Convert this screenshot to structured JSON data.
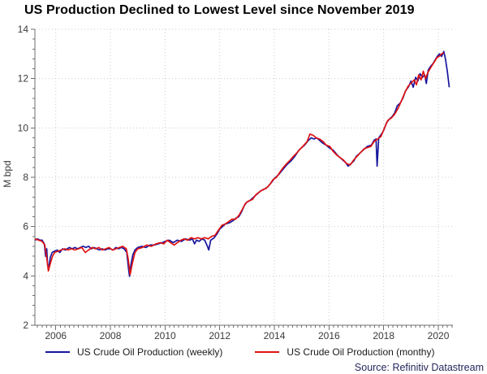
{
  "title": "US Production Declined to Lowest Level since November 2019",
  "source": "Source: Refinitiv Datastream",
  "colors": {
    "weekly": "#16169e",
    "monthly": "#e01313",
    "grid": "#cbcbcb",
    "axis": "#6f6f6f",
    "tick_label": "#3a3a3a",
    "title": "#000000",
    "source": "#26265c"
  },
  "chart_data": {
    "type": "line",
    "title": "US Production Declined to Lowest Level since November 2019",
    "xlabel": "",
    "ylabel": "M bpd",
    "ylim": [
      2,
      14
    ],
    "xlim": [
      2005.24,
      2020.53
    ],
    "y_ticks": [
      2,
      4,
      6,
      8,
      10,
      12,
      14
    ],
    "x_ticks": [
      2006,
      2008,
      2010,
      2012,
      2014,
      2016,
      2018,
      2020
    ],
    "grid": "dotted horizontal and vertical at major ticks",
    "legend_position": "bottom",
    "series": [
      {
        "name": "US Crude Oil Production (weekly)",
        "color_key": "weekly",
        "points": [
          [
            2005.24,
            5.45
          ],
          [
            2005.33,
            5.5
          ],
          [
            2005.42,
            5.45
          ],
          [
            2005.5,
            5.45
          ],
          [
            2005.58,
            5.3
          ],
          [
            2005.63,
            4.8
          ],
          [
            2005.67,
            5.1
          ],
          [
            2005.7,
            4.45
          ],
          [
            2005.75,
            4.4
          ],
          [
            2005.8,
            4.75
          ],
          [
            2005.87,
            4.95
          ],
          [
            2005.95,
            5.0
          ],
          [
            2006.05,
            5.05
          ],
          [
            2006.15,
            4.95
          ],
          [
            2006.25,
            5.1
          ],
          [
            2006.35,
            5.05
          ],
          [
            2006.5,
            5.15
          ],
          [
            2006.6,
            5.1
          ],
          [
            2006.7,
            5.15
          ],
          [
            2006.8,
            5.1
          ],
          [
            2006.9,
            5.15
          ],
          [
            2007.0,
            5.2
          ],
          [
            2007.1,
            5.15
          ],
          [
            2007.2,
            5.2
          ],
          [
            2007.3,
            5.1
          ],
          [
            2007.4,
            5.15
          ],
          [
            2007.5,
            5.1
          ],
          [
            2007.6,
            5.05
          ],
          [
            2007.7,
            5.1
          ],
          [
            2007.8,
            5.05
          ],
          [
            2007.9,
            5.1
          ],
          [
            2008.0,
            5.1
          ],
          [
            2008.1,
            5.05
          ],
          [
            2008.2,
            5.15
          ],
          [
            2008.3,
            5.1
          ],
          [
            2008.4,
            5.15
          ],
          [
            2008.5,
            5.1
          ],
          [
            2008.6,
            4.95
          ],
          [
            2008.66,
            4.3
          ],
          [
            2008.7,
            3.98
          ],
          [
            2008.75,
            4.45
          ],
          [
            2008.82,
            4.85
          ],
          [
            2008.9,
            5.05
          ],
          [
            2009.0,
            5.15
          ],
          [
            2009.15,
            5.2
          ],
          [
            2009.3,
            5.15
          ],
          [
            2009.45,
            5.25
          ],
          [
            2009.6,
            5.25
          ],
          [
            2009.75,
            5.3
          ],
          [
            2009.9,
            5.35
          ],
          [
            2010.0,
            5.4
          ],
          [
            2010.15,
            5.45
          ],
          [
            2010.3,
            5.35
          ],
          [
            2010.45,
            5.45
          ],
          [
            2010.6,
            5.4
          ],
          [
            2010.75,
            5.5
          ],
          [
            2010.9,
            5.45
          ],
          [
            2011.0,
            5.5
          ],
          [
            2011.08,
            5.3
          ],
          [
            2011.15,
            5.45
          ],
          [
            2011.25,
            5.4
          ],
          [
            2011.35,
            5.5
          ],
          [
            2011.45,
            5.45
          ],
          [
            2011.55,
            5.2
          ],
          [
            2011.6,
            5.05
          ],
          [
            2011.67,
            5.45
          ],
          [
            2011.8,
            5.55
          ],
          [
            2011.9,
            5.7
          ],
          [
            2012.0,
            5.9
          ],
          [
            2012.1,
            6.0
          ],
          [
            2012.2,
            6.1
          ],
          [
            2012.35,
            6.15
          ],
          [
            2012.5,
            6.25
          ],
          [
            2012.6,
            6.35
          ],
          [
            2012.7,
            6.4
          ],
          [
            2012.8,
            6.6
          ],
          [
            2012.9,
            6.85
          ],
          [
            2013.0,
            7.0
          ],
          [
            2013.1,
            7.05
          ],
          [
            2013.25,
            7.2
          ],
          [
            2013.4,
            7.35
          ],
          [
            2013.5,
            7.45
          ],
          [
            2013.6,
            7.5
          ],
          [
            2013.75,
            7.6
          ],
          [
            2013.9,
            7.8
          ],
          [
            2014.0,
            7.95
          ],
          [
            2014.15,
            8.1
          ],
          [
            2014.3,
            8.3
          ],
          [
            2014.45,
            8.5
          ],
          [
            2014.6,
            8.65
          ],
          [
            2014.75,
            8.85
          ],
          [
            2014.9,
            9.1
          ],
          [
            2015.0,
            9.2
          ],
          [
            2015.1,
            9.3
          ],
          [
            2015.25,
            9.5
          ],
          [
            2015.35,
            9.6
          ],
          [
            2015.45,
            9.55
          ],
          [
            2015.55,
            9.6
          ],
          [
            2015.65,
            9.5
          ],
          [
            2015.75,
            9.4
          ],
          [
            2015.9,
            9.3
          ],
          [
            2016.0,
            9.2
          ],
          [
            2016.15,
            9.1
          ],
          [
            2016.3,
            8.9
          ],
          [
            2016.45,
            8.75
          ],
          [
            2016.6,
            8.6
          ],
          [
            2016.7,
            8.45
          ],
          [
            2016.8,
            8.55
          ],
          [
            2016.9,
            8.65
          ],
          [
            2017.0,
            8.85
          ],
          [
            2017.1,
            8.95
          ],
          [
            2017.25,
            9.1
          ],
          [
            2017.4,
            9.25
          ],
          [
            2017.55,
            9.3
          ],
          [
            2017.65,
            9.5
          ],
          [
            2017.72,
            9.55
          ],
          [
            2017.76,
            8.45
          ],
          [
            2017.82,
            9.6
          ],
          [
            2017.92,
            9.75
          ],
          [
            2018.0,
            9.9
          ],
          [
            2018.1,
            10.2
          ],
          [
            2018.2,
            10.35
          ],
          [
            2018.3,
            10.45
          ],
          [
            2018.4,
            10.6
          ],
          [
            2018.5,
            10.9
          ],
          [
            2018.6,
            11.0
          ],
          [
            2018.7,
            11.2
          ],
          [
            2018.8,
            11.5
          ],
          [
            2018.9,
            11.65
          ],
          [
            2019.0,
            11.9
          ],
          [
            2019.08,
            11.65
          ],
          [
            2019.17,
            12.05
          ],
          [
            2019.25,
            11.9
          ],
          [
            2019.33,
            12.2
          ],
          [
            2019.42,
            12.05
          ],
          [
            2019.5,
            12.15
          ],
          [
            2019.56,
            11.8
          ],
          [
            2019.63,
            12.35
          ],
          [
            2019.72,
            12.5
          ],
          [
            2019.8,
            12.6
          ],
          [
            2019.88,
            12.75
          ],
          [
            2019.96,
            12.9
          ],
          [
            2020.04,
            13.0
          ],
          [
            2020.12,
            12.9
          ],
          [
            2020.2,
            13.1
          ],
          [
            2020.26,
            12.8
          ],
          [
            2020.33,
            12.3
          ],
          [
            2020.4,
            11.65
          ]
        ]
      },
      {
        "name": "US Crude Oil Production (monthy)",
        "color_key": "monthly",
        "points": [
          [
            2005.24,
            5.5
          ],
          [
            2005.38,
            5.45
          ],
          [
            2005.5,
            5.4
          ],
          [
            2005.6,
            5.25
          ],
          [
            2005.68,
            4.65
          ],
          [
            2005.73,
            4.2
          ],
          [
            2005.8,
            4.5
          ],
          [
            2005.88,
            4.8
          ],
          [
            2005.96,
            4.95
          ],
          [
            2006.08,
            5.0
          ],
          [
            2006.2,
            5.05
          ],
          [
            2006.33,
            5.1
          ],
          [
            2006.45,
            5.05
          ],
          [
            2006.58,
            5.1
          ],
          [
            2006.7,
            5.05
          ],
          [
            2006.83,
            5.1
          ],
          [
            2006.95,
            5.15
          ],
          [
            2007.08,
            4.95
          ],
          [
            2007.2,
            5.05
          ],
          [
            2007.33,
            5.15
          ],
          [
            2007.45,
            5.1
          ],
          [
            2007.58,
            5.15
          ],
          [
            2007.7,
            5.05
          ],
          [
            2007.83,
            5.1
          ],
          [
            2007.95,
            5.15
          ],
          [
            2008.08,
            5.05
          ],
          [
            2008.2,
            5.1
          ],
          [
            2008.33,
            5.15
          ],
          [
            2008.45,
            5.2
          ],
          [
            2008.58,
            5.1
          ],
          [
            2008.65,
            4.7
          ],
          [
            2008.72,
            4.05
          ],
          [
            2008.8,
            4.5
          ],
          [
            2008.9,
            4.95
          ],
          [
            2009.0,
            5.1
          ],
          [
            2009.17,
            5.15
          ],
          [
            2009.33,
            5.25
          ],
          [
            2009.5,
            5.2
          ],
          [
            2009.67,
            5.3
          ],
          [
            2009.83,
            5.35
          ],
          [
            2009.95,
            5.3
          ],
          [
            2010.08,
            5.45
          ],
          [
            2010.2,
            5.35
          ],
          [
            2010.33,
            5.25
          ],
          [
            2010.45,
            5.35
          ],
          [
            2010.58,
            5.45
          ],
          [
            2010.7,
            5.5
          ],
          [
            2010.83,
            5.45
          ],
          [
            2010.95,
            5.55
          ],
          [
            2011.08,
            5.5
          ],
          [
            2011.2,
            5.55
          ],
          [
            2011.33,
            5.5
          ],
          [
            2011.45,
            5.55
          ],
          [
            2011.58,
            5.5
          ],
          [
            2011.7,
            5.6
          ],
          [
            2011.83,
            5.65
          ],
          [
            2011.95,
            5.85
          ],
          [
            2012.08,
            6.05
          ],
          [
            2012.2,
            6.1
          ],
          [
            2012.33,
            6.2
          ],
          [
            2012.45,
            6.3
          ],
          [
            2012.58,
            6.3
          ],
          [
            2012.7,
            6.45
          ],
          [
            2012.83,
            6.7
          ],
          [
            2012.95,
            6.95
          ],
          [
            2013.08,
            7.05
          ],
          [
            2013.2,
            7.1
          ],
          [
            2013.33,
            7.3
          ],
          [
            2013.45,
            7.4
          ],
          [
            2013.58,
            7.5
          ],
          [
            2013.7,
            7.55
          ],
          [
            2013.83,
            7.7
          ],
          [
            2013.95,
            7.9
          ],
          [
            2014.08,
            8.0
          ],
          [
            2014.2,
            8.2
          ],
          [
            2014.33,
            8.4
          ],
          [
            2014.45,
            8.55
          ],
          [
            2014.58,
            8.7
          ],
          [
            2014.7,
            8.85
          ],
          [
            2014.83,
            9.0
          ],
          [
            2014.95,
            9.15
          ],
          [
            2015.08,
            9.3
          ],
          [
            2015.2,
            9.45
          ],
          [
            2015.3,
            9.75
          ],
          [
            2015.42,
            9.7
          ],
          [
            2015.53,
            9.6
          ],
          [
            2015.65,
            9.55
          ],
          [
            2015.78,
            9.45
          ],
          [
            2015.9,
            9.3
          ],
          [
            2016.03,
            9.25
          ],
          [
            2016.15,
            9.05
          ],
          [
            2016.28,
            8.9
          ],
          [
            2016.4,
            8.8
          ],
          [
            2016.53,
            8.7
          ],
          [
            2016.65,
            8.55
          ],
          [
            2016.78,
            8.5
          ],
          [
            2016.9,
            8.7
          ],
          [
            2017.03,
            8.85
          ],
          [
            2017.15,
            9.0
          ],
          [
            2017.28,
            9.15
          ],
          [
            2017.4,
            9.2
          ],
          [
            2017.53,
            9.25
          ],
          [
            2017.65,
            9.45
          ],
          [
            2017.78,
            9.55
          ],
          [
            2017.9,
            9.65
          ],
          [
            2018.03,
            10.0
          ],
          [
            2018.15,
            10.3
          ],
          [
            2018.28,
            10.4
          ],
          [
            2018.4,
            10.55
          ],
          [
            2018.53,
            10.8
          ],
          [
            2018.65,
            11.1
          ],
          [
            2018.78,
            11.45
          ],
          [
            2018.9,
            11.7
          ],
          [
            2019.03,
            11.85
          ],
          [
            2019.12,
            11.95
          ],
          [
            2019.2,
            11.75
          ],
          [
            2019.28,
            12.15
          ],
          [
            2019.37,
            11.95
          ],
          [
            2019.45,
            12.3
          ],
          [
            2019.53,
            12.0
          ],
          [
            2019.62,
            12.25
          ],
          [
            2019.7,
            12.4
          ],
          [
            2019.78,
            12.55
          ],
          [
            2019.87,
            12.7
          ],
          [
            2019.95,
            12.85
          ],
          [
            2020.03,
            12.9
          ],
          [
            2020.12,
            13.0
          ],
          [
            2020.2,
            13.05
          ]
        ]
      }
    ]
  }
}
